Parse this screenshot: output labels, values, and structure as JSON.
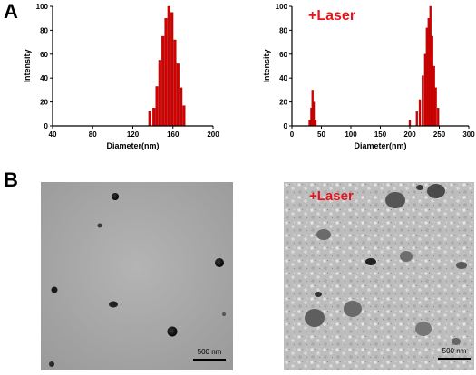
{
  "figure": {
    "panel_a_label": "A",
    "panel_b_label": "B"
  },
  "chart_data": [
    {
      "type": "bar",
      "title": "",
      "xlabel": "Diameter(nm)",
      "ylabel": "Intensity",
      "xlim": [
        40,
        200
      ],
      "ylim": [
        0,
        100
      ],
      "xticks": [
        "40",
        "80",
        "120",
        "160",
        "200"
      ],
      "yticks": [
        "0",
        "20",
        "40",
        "60",
        "80",
        "100"
      ],
      "bar_color": "#d40000",
      "bars": [
        {
          "x": 137,
          "y": 12
        },
        {
          "x": 141,
          "y": 15
        },
        {
          "x": 144,
          "y": 33
        },
        {
          "x": 147,
          "y": 55
        },
        {
          "x": 150,
          "y": 75
        },
        {
          "x": 153,
          "y": 90
        },
        {
          "x": 156,
          "y": 100
        },
        {
          "x": 159,
          "y": 95
        },
        {
          "x": 162,
          "y": 72
        },
        {
          "x": 165,
          "y": 52
        },
        {
          "x": 168,
          "y": 32
        },
        {
          "x": 171,
          "y": 17
        }
      ]
    },
    {
      "type": "bar",
      "title": "",
      "annotation": "+Laser",
      "xlabel": "Diameter(nm)",
      "ylabel": "Intensity",
      "xlim": [
        0,
        300
      ],
      "ylim": [
        0,
        100
      ],
      "xticks": [
        "0",
        "50",
        "100",
        "150",
        "200",
        "250",
        "300"
      ],
      "yticks": [
        "0",
        "20",
        "40",
        "60",
        "80",
        "100"
      ],
      "bar_color": "#d40000",
      "bars": [
        {
          "x": 30,
          "y": 5
        },
        {
          "x": 33,
          "y": 15
        },
        {
          "x": 35,
          "y": 30
        },
        {
          "x": 37,
          "y": 20
        },
        {
          "x": 40,
          "y": 5
        },
        {
          "x": 200,
          "y": 5
        },
        {
          "x": 212,
          "y": 12
        },
        {
          "x": 217,
          "y": 22
        },
        {
          "x": 222,
          "y": 42
        },
        {
          "x": 226,
          "y": 60
        },
        {
          "x": 229,
          "y": 82
        },
        {
          "x": 232,
          "y": 90
        },
        {
          "x": 235,
          "y": 100
        },
        {
          "x": 238,
          "y": 75
        },
        {
          "x": 241,
          "y": 50
        },
        {
          "x": 244,
          "y": 32
        },
        {
          "x": 248,
          "y": 15
        }
      ]
    }
  ],
  "tem_left": {
    "scale_bar_label": "500 nm"
  },
  "tem_right": {
    "annotation": "+Laser",
    "scale_bar_label": "500 nm"
  }
}
